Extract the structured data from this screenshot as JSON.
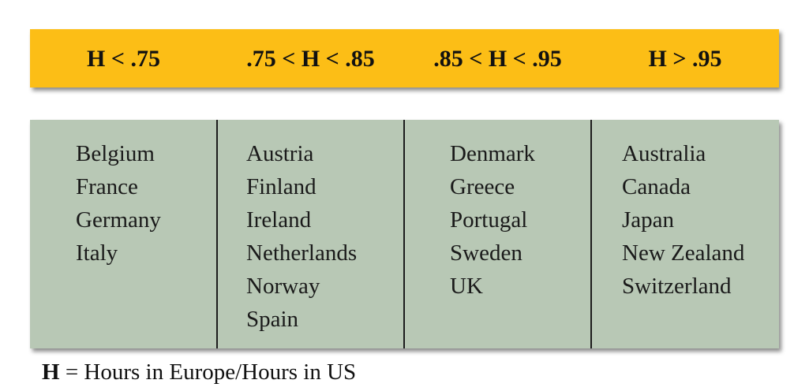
{
  "header": {
    "columns": [
      "H < .75",
      ".75 < H < .85",
      ".85 < H < .95",
      "H > .95"
    ]
  },
  "groups": [
    [
      "Belgium",
      "France",
      "Germany",
      "Italy"
    ],
    [
      "Austria",
      "Finland",
      "Ireland",
      "Netherlands",
      "Norway",
      "Spain"
    ],
    [
      "Denmark",
      "Greece",
      "Portugal",
      "Sweden",
      "UK"
    ],
    [
      "Australia",
      "Canada",
      "Japan",
      "New Zealand",
      "Switzerland"
    ]
  ],
  "footnote": {
    "symbol": "H",
    "text": "= Hours in Europe/Hours in US"
  },
  "colors": {
    "header_fill": "#fcbe16",
    "panel_fill": "#b8c8b5",
    "divider": "#1c1c1c"
  }
}
